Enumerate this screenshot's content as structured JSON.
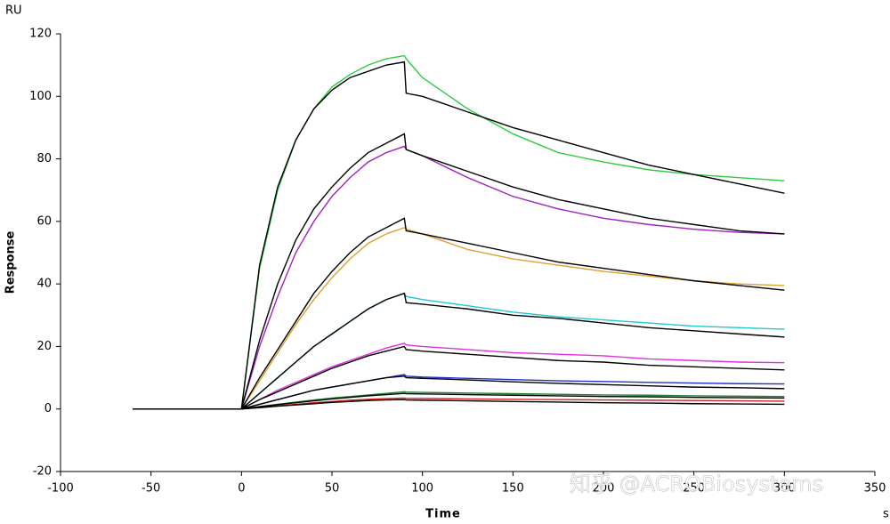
{
  "chart_data": {
    "type": "line",
    "y_unit": "RU",
    "ylabel": "Response",
    "xlabel": "Time",
    "x_unit": "s",
    "watermark": "知乎 @ACROBiosystems",
    "xlim": [
      -100,
      350
    ],
    "xticks": [
      -100,
      -50,
      0,
      50,
      100,
      150,
      200,
      250,
      300,
      350
    ],
    "ylim": [
      -20,
      120
    ],
    "yticks": [
      -20,
      0,
      20,
      40,
      60,
      80,
      100,
      120
    ],
    "grid": false,
    "x": [
      -60,
      -40,
      -20,
      0,
      10,
      20,
      30,
      40,
      50,
      60,
      70,
      80,
      90,
      91,
      100,
      125,
      150,
      175,
      200,
      225,
      250,
      275,
      300
    ],
    "series": [
      {
        "color": "#2ecc40",
        "values": [
          0,
          0,
          0,
          0,
          45,
          70,
          86,
          96,
          103,
          107,
          110,
          112,
          113,
          112,
          106,
          96,
          88,
          82,
          79,
          76.5,
          75,
          74,
          73
        ]
      },
      {
        "color": "#a020c0",
        "values": [
          0,
          0,
          0,
          0,
          20,
          36,
          50,
          60,
          68,
          74,
          79,
          82,
          84,
          83,
          81,
          74,
          68,
          64,
          61,
          59,
          57.5,
          56.5,
          56
        ]
      },
      {
        "color": "#e0a030",
        "values": [
          0,
          0,
          0,
          0,
          9,
          18,
          27,
          35,
          42,
          48,
          53,
          56,
          58,
          57.5,
          56,
          51,
          48,
          46,
          44,
          42.5,
          41,
          40,
          39.5
        ]
      },
      {
        "color": "#20c8d0",
        "values": [
          0,
          0,
          0,
          0,
          5,
          10,
          15,
          20,
          24,
          28,
          32,
          35,
          37,
          36,
          35,
          33,
          31,
          29.5,
          28.5,
          27.5,
          26.5,
          26,
          25.5
        ]
      },
      {
        "color": "#e030e0",
        "values": [
          0,
          0,
          0,
          0,
          3,
          6,
          8.5,
          11,
          13.5,
          15.5,
          17.5,
          19.5,
          21,
          20.5,
          20,
          19,
          18,
          17.5,
          17,
          16,
          15.5,
          15,
          14.8
        ]
      },
      {
        "color": "#2030d0",
        "values": [
          0,
          0,
          0,
          0,
          1.5,
          3,
          4.5,
          6,
          7,
          8,
          9,
          10,
          11,
          10.5,
          10.2,
          9.8,
          9.4,
          9,
          8.8,
          8.5,
          8.3,
          8.1,
          8
        ]
      },
      {
        "color": "#208030",
        "values": [
          0,
          0,
          0,
          0,
          0.8,
          1.5,
          2.2,
          2.9,
          3.5,
          4,
          4.5,
          5,
          5.5,
          5.4,
          5.3,
          5.1,
          4.9,
          4.7,
          4.5,
          4.4,
          4.2,
          4.1,
          4
        ]
      },
      {
        "color": "#d02020",
        "values": [
          0,
          0,
          0,
          0,
          0.5,
          1,
          1.5,
          2,
          2.4,
          2.8,
          3.1,
          3.3,
          3.5,
          3.4,
          3.4,
          3.2,
          3.1,
          3,
          2.9,
          2.8,
          2.7,
          2.6,
          2.5
        ]
      },
      {
        "color": "#000000",
        "values": [
          0,
          0,
          0,
          0,
          46,
          71,
          86,
          96,
          102,
          106,
          108,
          110,
          111,
          101,
          100,
          95,
          90,
          86,
          82,
          78,
          75,
          72,
          69
        ]
      },
      {
        "color": "#000000",
        "values": [
          0,
          0,
          0,
          0,
          22,
          40,
          54,
          64,
          71,
          77,
          82,
          85,
          88,
          83,
          81,
          76,
          71,
          67,
          64,
          61,
          59,
          57,
          56
        ]
      },
      {
        "color": "#000000",
        "values": [
          0,
          0,
          0,
          0,
          10,
          19,
          28,
          37,
          44,
          50,
          55,
          58,
          61,
          57,
          56,
          53,
          50,
          47,
          45,
          43,
          41,
          39.5,
          38
        ]
      },
      {
        "color": "#000000",
        "values": [
          0,
          0,
          0,
          0,
          5,
          10,
          15,
          20,
          24,
          28,
          32,
          35,
          37,
          34,
          33.5,
          32,
          30,
          29,
          27.5,
          26,
          25,
          24,
          23
        ]
      },
      {
        "color": "#000000",
        "values": [
          0,
          0,
          0,
          0,
          3,
          5.5,
          8,
          10.5,
          13,
          15,
          17,
          18.5,
          20,
          19,
          18.5,
          17.5,
          16.5,
          15.5,
          15,
          14,
          13.5,
          13,
          12.5
        ]
      },
      {
        "color": "#000000",
        "values": [
          0,
          0,
          0,
          0,
          1.5,
          3,
          4.5,
          6,
          7,
          8,
          9,
          10,
          10.5,
          10,
          9.8,
          9.3,
          8.7,
          8.2,
          7.8,
          7.4,
          7,
          6.8,
          6.5
        ]
      },
      {
        "color": "#000000",
        "values": [
          0,
          0,
          0,
          0,
          0.7,
          1.4,
          2,
          2.6,
          3.2,
          3.7,
          4.2,
          4.6,
          5,
          4.9,
          4.8,
          4.6,
          4.4,
          4.2,
          4,
          3.9,
          3.7,
          3.6,
          3.5
        ]
      },
      {
        "color": "#000000",
        "values": [
          0,
          0,
          0,
          0,
          0.4,
          0.9,
          1.3,
          1.7,
          2.1,
          2.4,
          2.7,
          2.9,
          3,
          2.9,
          2.8,
          2.6,
          2.4,
          2.2,
          2,
          1.9,
          1.7,
          1.6,
          1.5
        ]
      }
    ]
  }
}
